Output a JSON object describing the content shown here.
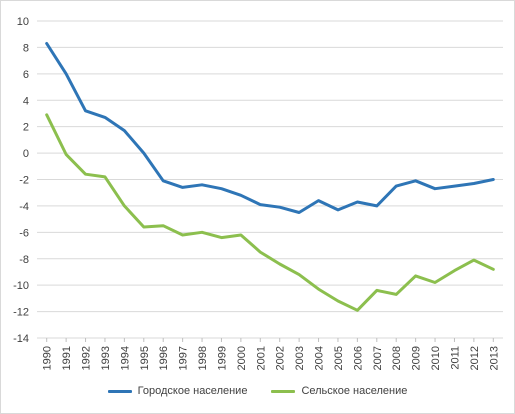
{
  "chart_data": {
    "type": "line",
    "categories": [
      "1990",
      "1991",
      "1992",
      "1993",
      "1994",
      "1995",
      "1996",
      "1997",
      "1998",
      "1999",
      "2000",
      "2001",
      "2002",
      "2003",
      "2004",
      "2005",
      "2006",
      "2007",
      "2008",
      "2009",
      "2010",
      "2011",
      "2012",
      "2013"
    ],
    "series": [
      {
        "name": "Городское население",
        "color": "#2e75b6",
        "values": [
          8.3,
          6.0,
          3.2,
          2.7,
          1.7,
          0.0,
          -2.1,
          -2.6,
          -2.4,
          -2.7,
          -3.2,
          -3.9,
          -4.1,
          -4.5,
          -3.6,
          -4.3,
          -3.7,
          -4.0,
          -2.5,
          -2.1,
          -2.7,
          -2.5,
          -2.3,
          -2.0
        ]
      },
      {
        "name": "Сельское население",
        "color": "#8cbf4e",
        "values": [
          2.9,
          -0.1,
          -1.6,
          -1.8,
          -4.0,
          -5.6,
          -5.5,
          -6.2,
          -6.0,
          -6.4,
          -6.2,
          -7.5,
          -8.4,
          -9.2,
          -10.3,
          -11.2,
          -11.9,
          -10.4,
          -10.7,
          -9.3,
          -9.8,
          -8.9,
          -8.1,
          -8.8
        ]
      }
    ],
    "title": "",
    "xlabel": "",
    "ylabel": "",
    "ylim": [
      -14,
      10
    ],
    "yticks": [
      "10",
      "8",
      "6",
      "4",
      "2",
      "0",
      "-2",
      "-4",
      "-6",
      "-8",
      "-10",
      "-12",
      "-14"
    ],
    "grid": true,
    "legend_position": "bottom"
  }
}
